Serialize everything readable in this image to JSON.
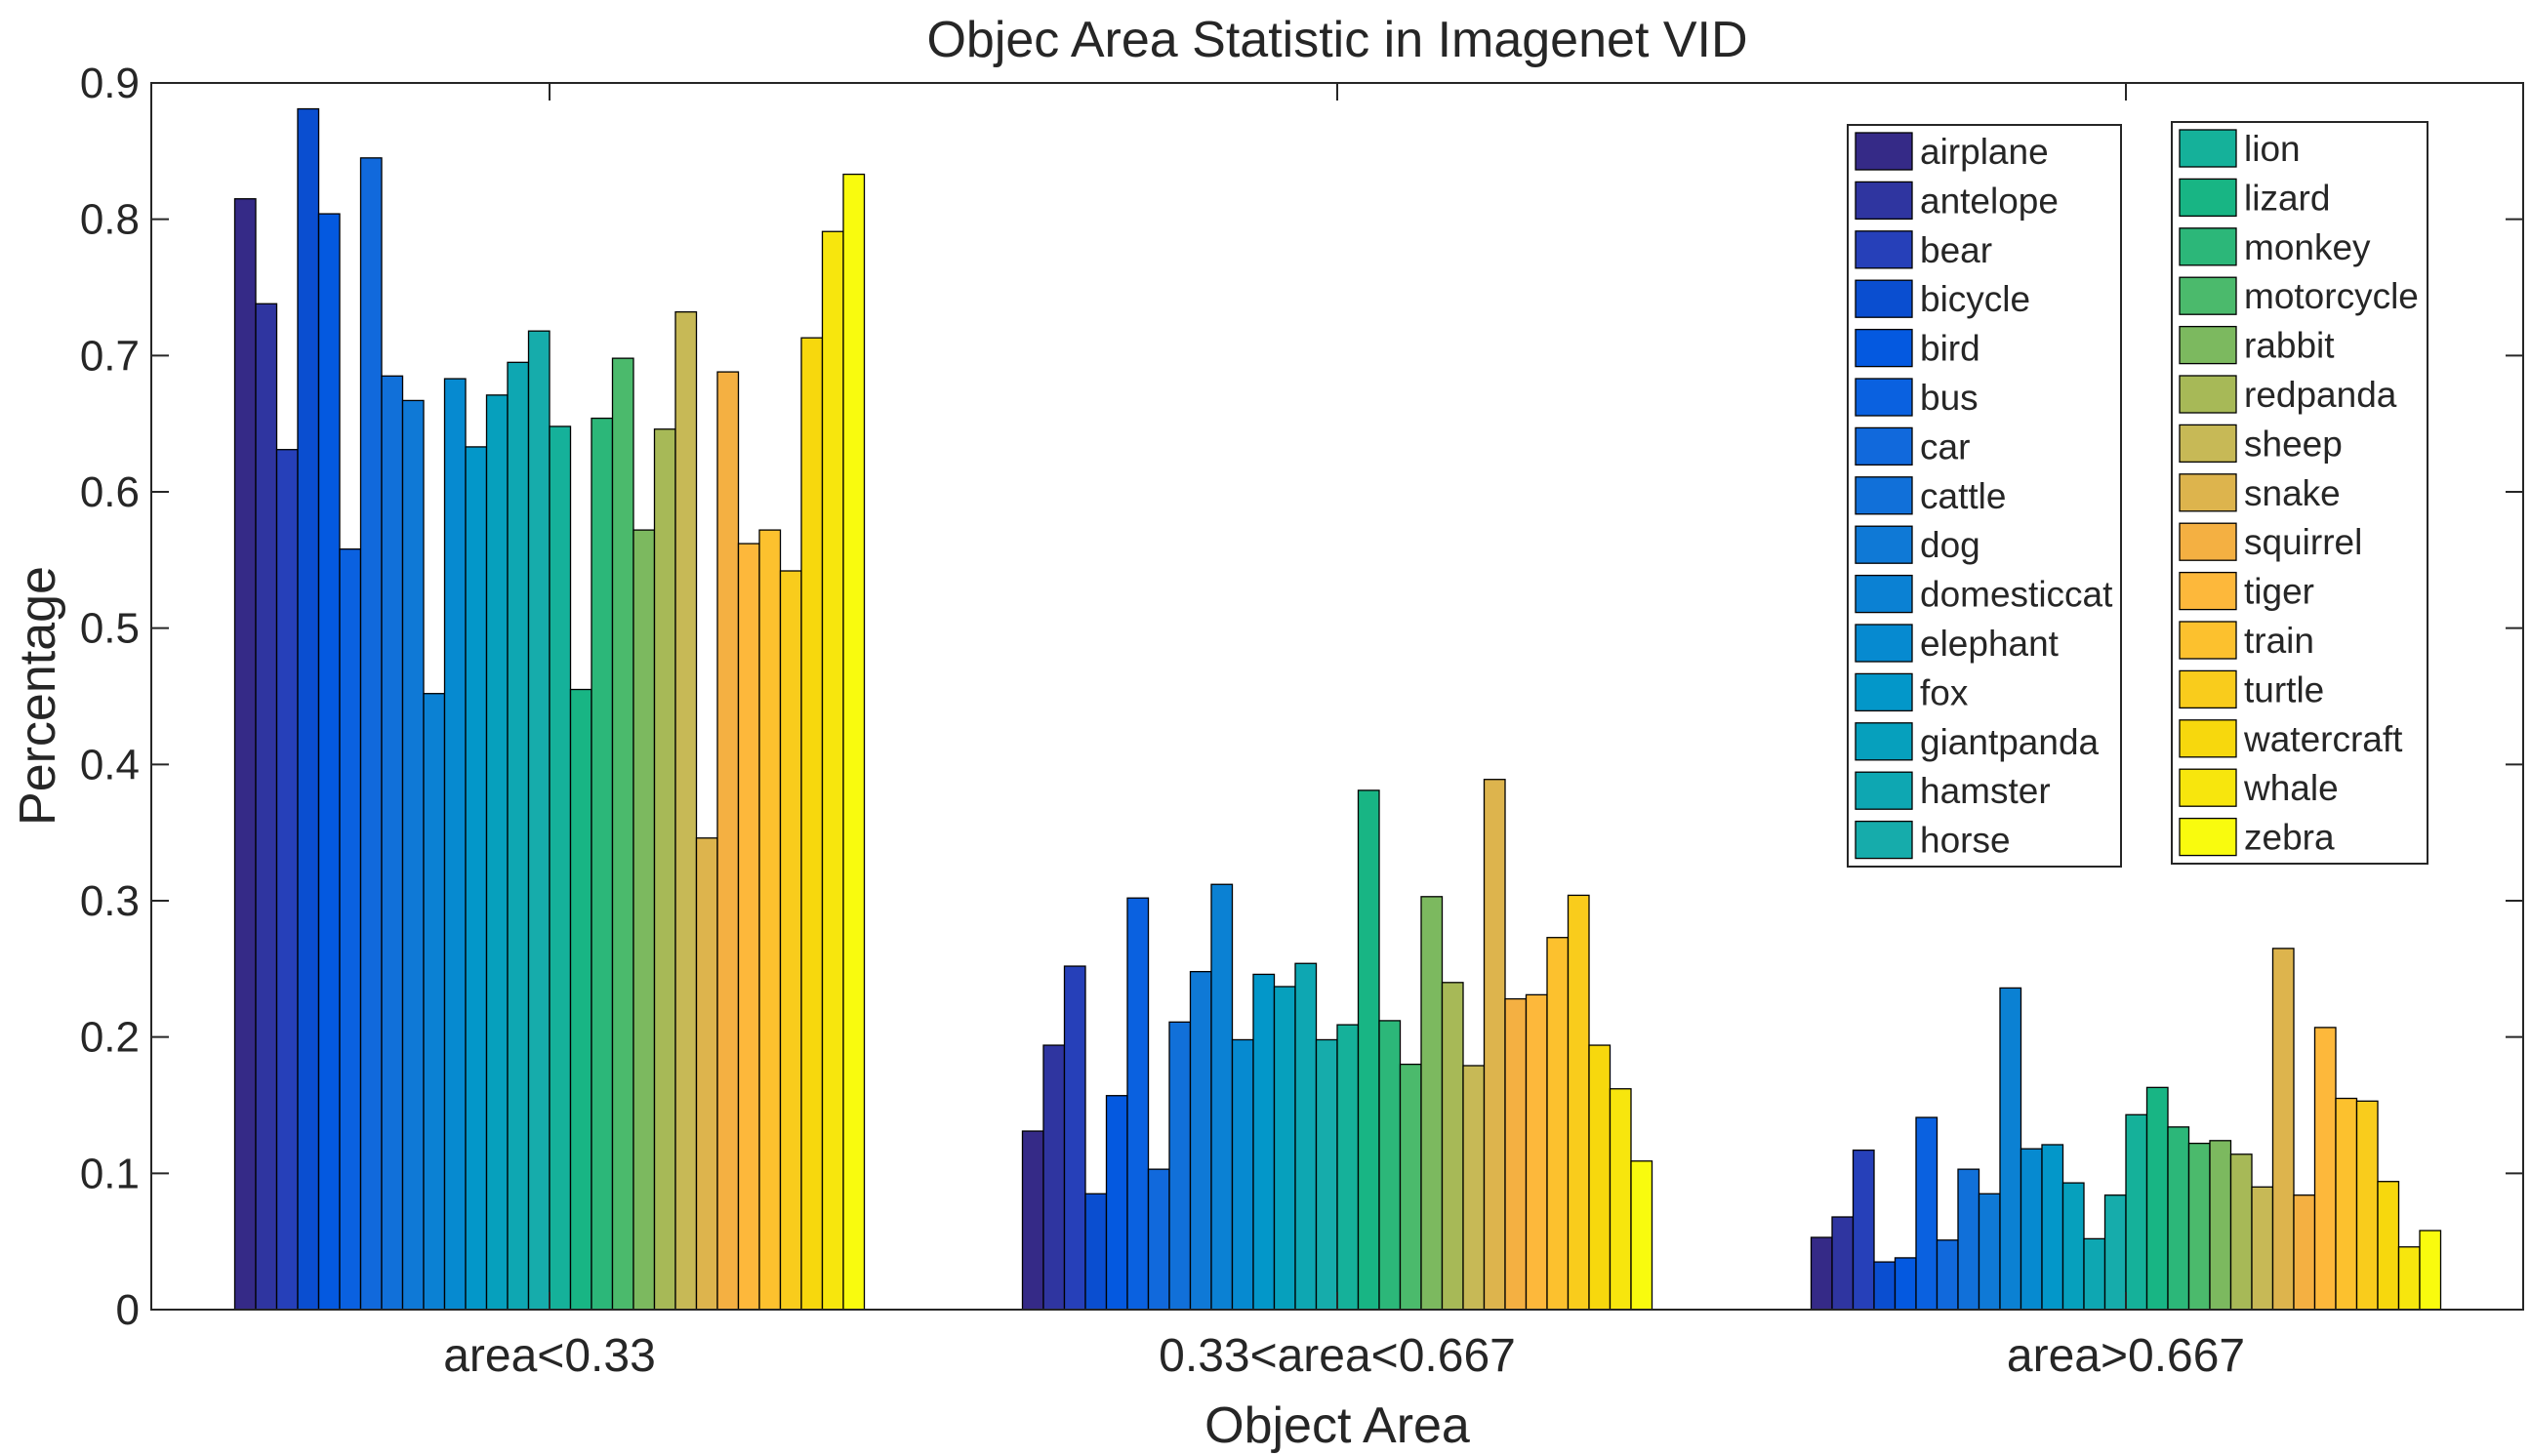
{
  "chart_data": {
    "type": "bar",
    "title": "Objec Area Statistic in Imagenet VID",
    "xlabel": "Object Area",
    "ylabel": "Percentage",
    "ylim": [
      0,
      0.9
    ],
    "yticks": [
      "0",
      "0.1",
      "0.2",
      "0.3",
      "0.4",
      "0.5",
      "0.6",
      "0.7",
      "0.8",
      "0.9"
    ],
    "categories": [
      "area<0.33",
      "0.33<area<0.667",
      "area>0.667"
    ],
    "grid": false,
    "legend_position": "top-right",
    "series": [
      {
        "name": "airplane",
        "color": "#352a87",
        "values": [
          0.815,
          0.131,
          0.053
        ]
      },
      {
        "name": "antelope",
        "color": "#2f35a0",
        "values": [
          0.738,
          0.194,
          0.068
        ]
      },
      {
        "name": "bear",
        "color": "#2640b9",
        "values": [
          0.631,
          0.252,
          0.117
        ]
      },
      {
        "name": "bicycle",
        "color": "#0a4ed0",
        "values": [
          0.881,
          0.085,
          0.035
        ]
      },
      {
        "name": "bird",
        "color": "#0459e0",
        "values": [
          0.804,
          0.157,
          0.038
        ]
      },
      {
        "name": "bus",
        "color": "#0a61e0",
        "values": [
          0.558,
          0.302,
          0.141
        ]
      },
      {
        "name": "car",
        "color": "#1169dc",
        "values": [
          0.845,
          0.103,
          0.051
        ]
      },
      {
        "name": "cattle",
        "color": "#1170d9",
        "values": [
          0.685,
          0.211,
          0.103
        ]
      },
      {
        "name": "dog",
        "color": "#0f79d6",
        "values": [
          0.667,
          0.248,
          0.085
        ]
      },
      {
        "name": "domesticcat",
        "color": "#0b81d3",
        "values": [
          0.452,
          0.312,
          0.236
        ]
      },
      {
        "name": "elephant",
        "color": "#068ad0",
        "values": [
          0.683,
          0.198,
          0.118
        ]
      },
      {
        "name": "fox",
        "color": "#0397c9",
        "values": [
          0.633,
          0.246,
          0.121
        ]
      },
      {
        "name": "giantpanda",
        "color": "#06a0bd",
        "values": [
          0.671,
          0.237,
          0.093
        ]
      },
      {
        "name": "hamster",
        "color": "#0ea7b2",
        "values": [
          0.695,
          0.254,
          0.052
        ]
      },
      {
        "name": "horse",
        "color": "#16acab",
        "values": [
          0.718,
          0.198,
          0.084
        ]
      },
      {
        "name": "lion",
        "color": "#15b19a",
        "values": [
          0.648,
          0.209,
          0.143
        ]
      },
      {
        "name": "lizard",
        "color": "#18b584",
        "values": [
          0.455,
          0.381,
          0.163
        ]
      },
      {
        "name": "monkey",
        "color": "#2cb779",
        "values": [
          0.654,
          0.212,
          0.134
        ]
      },
      {
        "name": "motorcycle",
        "color": "#4bba6c",
        "values": [
          0.698,
          0.18,
          0.122
        ]
      },
      {
        "name": "rabbit",
        "color": "#7cb95f",
        "values": [
          0.572,
          0.303,
          0.124
        ]
      },
      {
        "name": "redpanda",
        "color": "#a7b957",
        "values": [
          0.646,
          0.24,
          0.114
        ]
      },
      {
        "name": "sheep",
        "color": "#c7b956",
        "values": [
          0.732,
          0.179,
          0.09
        ]
      },
      {
        "name": "snake",
        "color": "#ddb44d",
        "values": [
          0.346,
          0.389,
          0.265
        ]
      },
      {
        "name": "squirrel",
        "color": "#f4b042",
        "values": [
          0.688,
          0.228,
          0.084
        ]
      },
      {
        "name": "tiger",
        "color": "#fdb83b",
        "values": [
          0.562,
          0.231,
          0.207
        ]
      },
      {
        "name": "train",
        "color": "#fcc12e",
        "values": [
          0.572,
          0.273,
          0.155
        ]
      },
      {
        "name": "turtle",
        "color": "#f9cc1c",
        "values": [
          0.542,
          0.304,
          0.153
        ]
      },
      {
        "name": "watercraft",
        "color": "#f7d80d",
        "values": [
          0.713,
          0.194,
          0.094
        ]
      },
      {
        "name": "whale",
        "color": "#f7e60d",
        "values": [
          0.791,
          0.162,
          0.046
        ]
      },
      {
        "name": "zebra",
        "color": "#f9fb0e",
        "values": [
          0.833,
          0.109,
          0.058
        ]
      }
    ]
  }
}
